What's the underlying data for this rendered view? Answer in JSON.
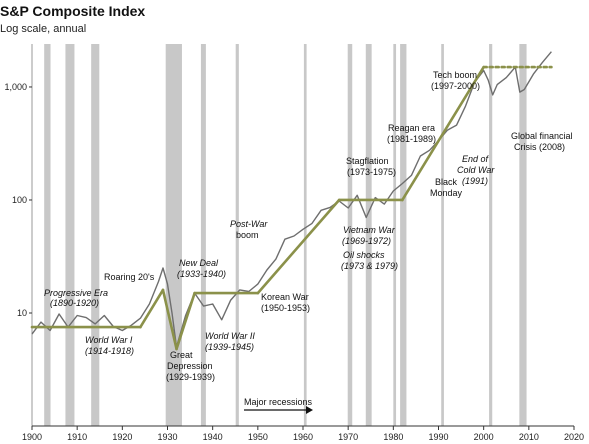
{
  "chart_data": {
    "type": "line",
    "title": "S&P Composite Index",
    "subtitle": "Log scale, annual",
    "y_scale": "log",
    "ylim": [
      1,
      2400
    ],
    "xlim": [
      1900,
      2020
    ],
    "y_ticks": [
      10,
      100,
      1000
    ],
    "y_tick_labels": [
      "10",
      "100",
      "1,000"
    ],
    "x_ticks": [
      1900,
      1910,
      1920,
      1930,
      1940,
      1950,
      1960,
      1970,
      1980,
      1990,
      2000,
      2010,
      2020
    ],
    "x_tick_labels": [
      "1900",
      "1910",
      "1920",
      "1930",
      "1940",
      "1950",
      "1960",
      "1970",
      "1980",
      "1990",
      "2000",
      "2010",
      "2020"
    ],
    "grid": false,
    "colors": {
      "index": "#6e6e6e",
      "trend": "#8b914a",
      "recession": "#c8c8c8",
      "axis": "#333333"
    },
    "series": [
      {
        "x": [
          1900,
          1902,
          1904,
          1906,
          1908,
          1910,
          1912,
          1914,
          1916,
          1918,
          1920,
          1922,
          1924,
          1926,
          1928,
          1929,
          1930,
          1931,
          1932,
          1934,
          1936,
          1938,
          1940,
          1942,
          1944,
          1946,
          1948,
          1950,
          1952,
          1954,
          1956,
          1958,
          1960,
          1962,
          1964,
          1966,
          1968,
          1970,
          1972,
          1974,
          1976,
          1978,
          1980,
          1982,
          1984,
          1986,
          1988,
          1990,
          1992,
          1994,
          1996,
          1998,
          2000,
          2001,
          2002,
          2003,
          2005,
          2007,
          2008,
          2009,
          2011,
          2013,
          2015
        ],
        "y": [
          6.5,
          8.3,
          7.0,
          9.8,
          7.5,
          9.5,
          9.1,
          8.0,
          9.5,
          7.6,
          7.0,
          7.8,
          9.0,
          12.0,
          19.0,
          25.0,
          18.0,
          10.0,
          5.0,
          9.5,
          15.0,
          11.5,
          12.0,
          8.7,
          13.0,
          16.0,
          15.5,
          18.0,
          24.0,
          30.0,
          45.0,
          48.0,
          55.0,
          62.0,
          81.0,
          86.0,
          98.0,
          85.0,
          110.0,
          70.0,
          105.0,
          92.0,
          120.0,
          140.0,
          165.0,
          245.0,
          275.0,
          335.0,
          415.0,
          460.0,
          680.0,
          1100.0,
          1400.0,
          1150.0,
          850.0,
          1050.0,
          1210.0,
          1500.0,
          900.0,
          950.0,
          1300.0,
          1650.0,
          2050.0
        ]
      }
    ],
    "trend_segments": [
      [
        [
          1900,
          7.5
        ],
        [
          1924,
          7.5
        ]
      ],
      [
        [
          1924,
          7.5
        ],
        [
          1929,
          16
        ]
      ],
      [
        [
          1929,
          16
        ],
        [
          1932,
          4.8
        ]
      ],
      [
        [
          1932,
          4.8
        ],
        [
          1936,
          15
        ]
      ],
      [
        [
          1936,
          15
        ],
        [
          1950,
          15
        ]
      ],
      [
        [
          1950,
          15
        ],
        [
          1968,
          100
        ]
      ],
      [
        [
          1968,
          100
        ],
        [
          1982,
          100
        ]
      ],
      [
        [
          1982,
          100
        ],
        [
          2000,
          1500
        ]
      ],
      [
        [
          2000,
          1500
        ],
        [
          2015,
          1500
        ]
      ]
    ],
    "recessions": [
      [
        1902.7,
        1904.1
      ],
      [
        1907.4,
        1909.4
      ],
      [
        1913.1,
        1914.9
      ],
      [
        1929.6,
        1933.2
      ],
      [
        1937.4,
        1938.5
      ],
      [
        1945.1,
        1945.8
      ],
      [
        1960.2,
        1960.8
      ],
      [
        1969.9,
        1970.9
      ],
      [
        1973.9,
        1975.2
      ],
      [
        1980.0,
        1980.6
      ],
      [
        1981.5,
        1982.9
      ],
      [
        1990.6,
        1991.2
      ],
      [
        2001.2,
        2001.9
      ],
      [
        2007.9,
        2009.5
      ]
    ],
    "annotations": [
      {
        "text": "Progressive Era",
        "style": "italic"
      },
      {
        "text": "(1890-1920)",
        "style": "italic"
      },
      {
        "text": "World War I",
        "style": "italic"
      },
      {
        "text": "(1914-1918)",
        "style": "italic"
      },
      {
        "text": "Roaring 20's",
        "style": "normal"
      },
      {
        "text": "New Deal",
        "style": "italic"
      },
      {
        "text": "(1933-1940)",
        "style": "italic"
      },
      {
        "text": "Great",
        "style": "normal"
      },
      {
        "text": "Depression",
        "style": "normal"
      },
      {
        "text": "(1929-1939)",
        "style": "normal"
      },
      {
        "text": "World War II",
        "style": "italic"
      },
      {
        "text": "(1939-1945)",
        "style": "italic"
      },
      {
        "text": "Post-War",
        "style": "italic"
      },
      {
        "text": "boom",
        "style": "normal"
      },
      {
        "text": "Korean War",
        "style": "normal"
      },
      {
        "text": "(1950-1953)",
        "style": "normal"
      },
      {
        "text": "Stagflation",
        "style": "normal"
      },
      {
        "text": "(1973-1975)",
        "style": "normal"
      },
      {
        "text": "Vietnam War",
        "style": "italic"
      },
      {
        "text": "(1969-1972)",
        "style": "italic"
      },
      {
        "text": "Oil shocks",
        "style": "italic"
      },
      {
        "text": "(1973 & 1979)",
        "style": "italic"
      },
      {
        "text": "Reagan era",
        "style": "normal"
      },
      {
        "text": "(1981-1989)",
        "style": "normal"
      },
      {
        "text": "Black",
        "style": "normal"
      },
      {
        "text": "Monday",
        "style": "normal"
      },
      {
        "text": "End of",
        "style": "italic"
      },
      {
        "text": "Cold War",
        "style": "italic"
      },
      {
        "text": "(1991)",
        "style": "italic"
      },
      {
        "text": "Tech boom",
        "style": "normal"
      },
      {
        "text": "(1997-2000)",
        "style": "normal"
      },
      {
        "text": "Global financial",
        "style": "normal"
      },
      {
        "text": "Crisis (2008)",
        "style": "normal"
      },
      {
        "text": "Major recessions",
        "style": "normal"
      }
    ]
  }
}
